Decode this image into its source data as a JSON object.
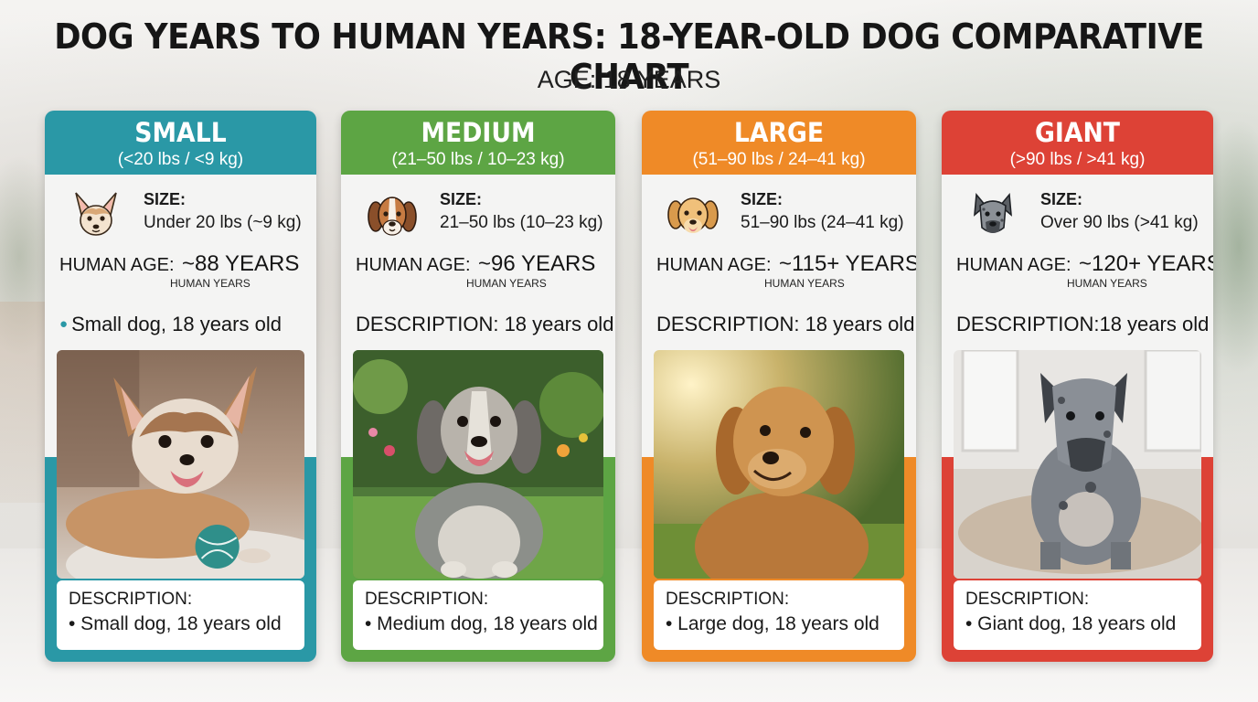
{
  "header": {
    "title": "DOG YEARS TO HUMAN YEARS: 18-YEAR-OLD DOG COMPARATIVE CHART",
    "subtitle": "AGE: 18 YEARS"
  },
  "colors": {
    "small": "#2a98a6",
    "medium": "#5da544",
    "large": "#ef8a27",
    "giant": "#dd4236"
  },
  "cards": [
    {
      "title": "SMALL",
      "range": "(<20 lbs / <9 kg)",
      "icon": "chihuahua-icon",
      "size_label": "SIZE:",
      "size_value": "Under 20 lbs (~9 kg)",
      "human_age_label": "HUMAN AGE:",
      "human_age_value": "~88 YEARS",
      "human_years": "HUMAN YEARS",
      "description_line": "Small dog, 18 years old",
      "description_label": "DESCRIPTION:",
      "description_text": "• Small dog, 18 years old"
    },
    {
      "title": "MEDIUM",
      "range": "(21–50 lbs / 10–23 kg)",
      "icon": "beagle-icon",
      "size_label": "SIZE:",
      "size_value": "21–50 lbs (10–23 kg)",
      "human_age_label": "HUMAN AGE:",
      "human_age_value": "~96 YEARS",
      "human_years": "HUMAN YEARS",
      "description_line": "DESCRIPTION:  18 years old",
      "description_label": "DESCRIPTION:",
      "description_text": "• Medium dog, 18 years old"
    },
    {
      "title": "LARGE",
      "range": "(51–90 lbs / 24–41 kg)",
      "icon": "golden-retriever-icon",
      "size_label": "SIZE:",
      "size_value": "51–90 lbs (24–41 kg)",
      "human_age_label": "HUMAN AGE:",
      "human_age_value": "~115+ YEARS",
      "human_years": "HUMAN YEARS",
      "description_line": "DESCRIPTION: 18 years old",
      "description_label": "DESCRIPTION:",
      "description_text": "• Large dog, 18 years old"
    },
    {
      "title": "GIANT",
      "range": "(>90 lbs / >41 kg)",
      "icon": "great-dane-icon",
      "size_label": "SIZE:",
      "size_value": "Over 90 lbs (>41 kg)",
      "human_age_label": "HUMAN AGE:",
      "human_age_value": "~120+ YEARS",
      "human_years": "HUMAN YEARS",
      "description_line": "DESCRIPTION:18 years old",
      "description_label": "DESCRIPTION:",
      "description_text": "• Giant dog, 18 years old"
    }
  ]
}
